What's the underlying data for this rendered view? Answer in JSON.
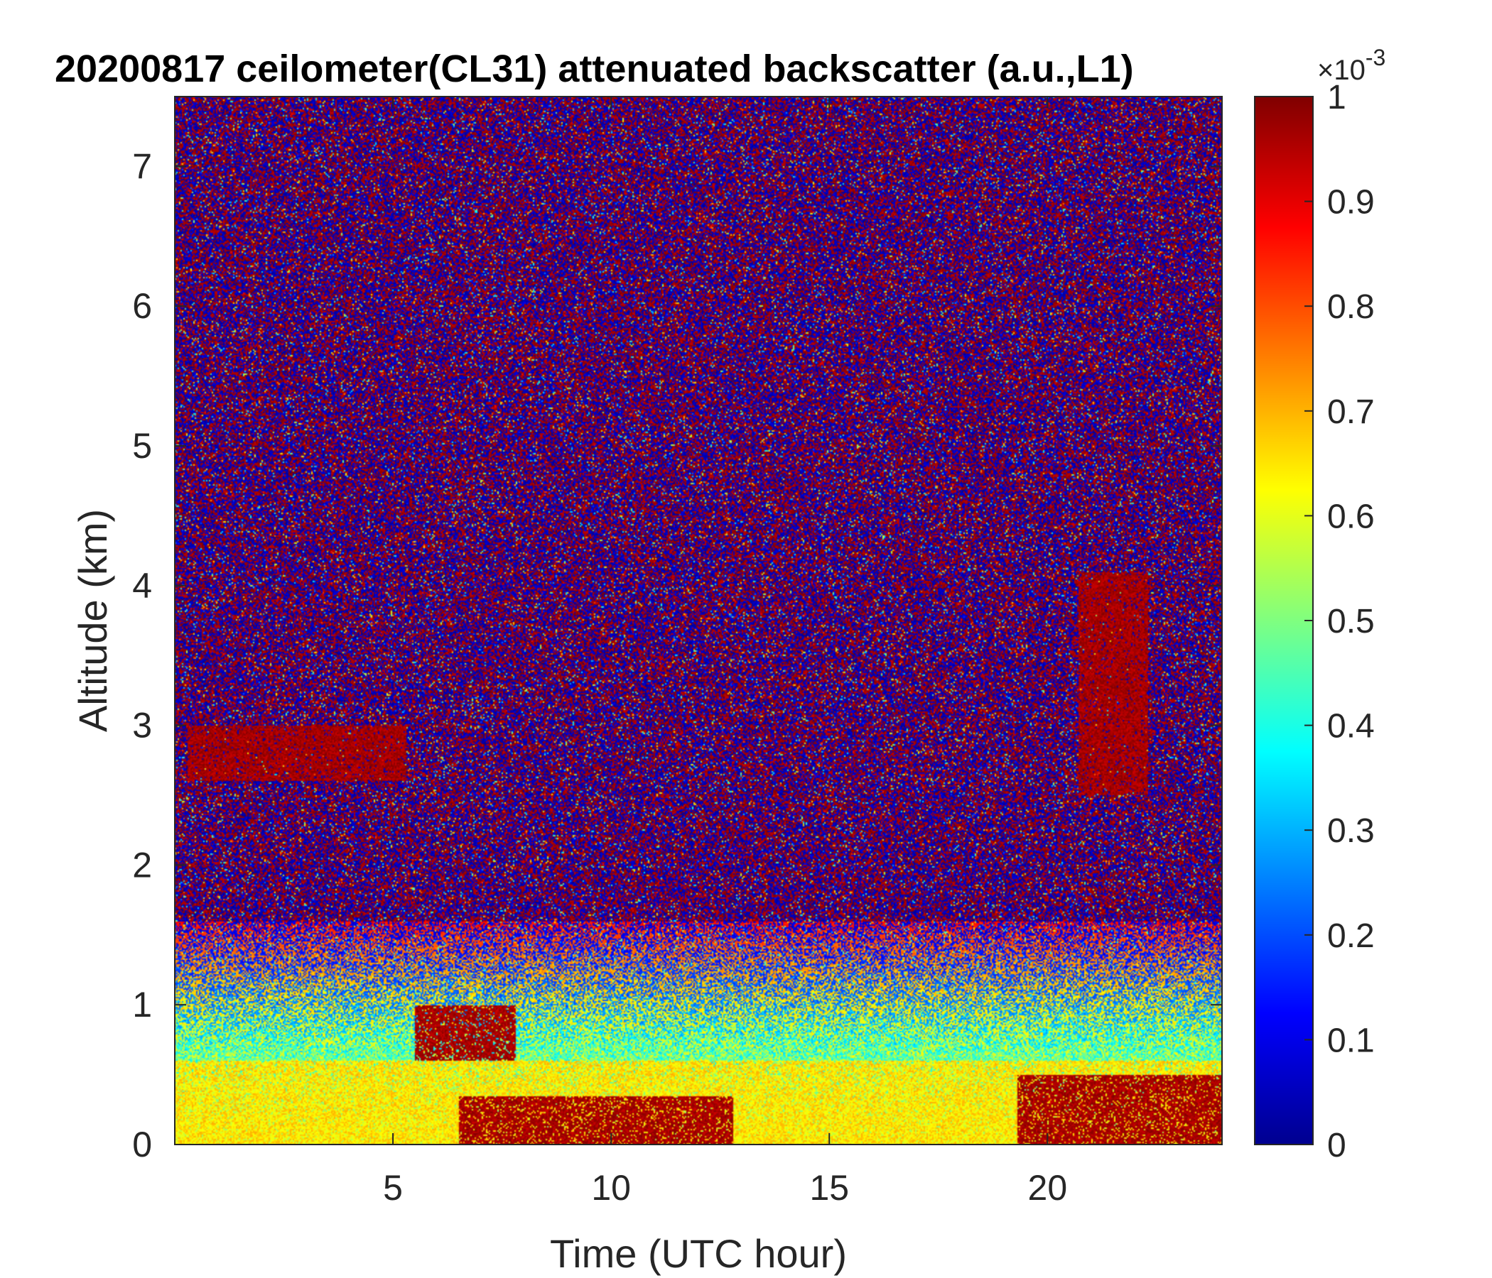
{
  "chart_data": {
    "type": "heatmap",
    "title": "20200817 ceilometer(CL31) attenuated backscatter (a.u.,L1)",
    "xlabel": "Time (UTC hour)",
    "ylabel": "Altitude (km)",
    "xlim": [
      0,
      24
    ],
    "ylim": [
      0,
      7.5
    ],
    "x_ticks": [
      5,
      10,
      15,
      20
    ],
    "x_tick_labels": [
      "5",
      "10",
      "15",
      "20"
    ],
    "y_ticks": [
      0,
      1,
      2,
      3,
      4,
      5,
      6,
      7
    ],
    "y_tick_labels": [
      "0",
      "1",
      "2",
      "3",
      "4",
      "5",
      "6",
      "7"
    ],
    "colorbar": {
      "colormap": "jet",
      "range": [
        0,
        1
      ],
      "exponent_label": "×10",
      "exponent_power": "-3",
      "ticks": [
        0,
        0.1,
        0.2,
        0.3,
        0.4,
        0.5,
        0.6,
        0.7,
        0.8,
        0.9,
        1
      ],
      "tick_labels": [
        "0",
        "0.1",
        "0.2",
        "0.3",
        "0.4",
        "0.5",
        "0.6",
        "0.7",
        "0.8",
        "0.9",
        "1"
      ]
    },
    "features": [
      {
        "kind": "aerosol-layer",
        "x_range": [
          0,
          24
        ],
        "y_range": [
          0,
          0.6
        ],
        "value": 0.65
      },
      {
        "kind": "cloud-layer",
        "x_range": [
          0.3,
          5.3
        ],
        "y_range": [
          2.6,
          3.0
        ],
        "value": 1.0
      },
      {
        "kind": "cloud-layer",
        "x_range": [
          5.5,
          7.8
        ],
        "y_range": [
          0.6,
          1.0
        ],
        "value": 1.0
      },
      {
        "kind": "dense-aerosol",
        "x_range": [
          6.5,
          12.8
        ],
        "y_range": [
          0,
          0.35
        ],
        "value": 1.0
      },
      {
        "kind": "plume",
        "x_range": [
          20.7,
          22.3
        ],
        "y_range": [
          2.5,
          4.1
        ],
        "value": 1.0
      },
      {
        "kind": "dense-aerosol",
        "x_range": [
          19.3,
          24
        ],
        "y_range": [
          0,
          0.5
        ],
        "value": 1.0
      },
      {
        "kind": "noise-background",
        "x_range": [
          0,
          24
        ],
        "y_range": [
          1.5,
          7.5
        ],
        "value": 0.5
      }
    ]
  }
}
